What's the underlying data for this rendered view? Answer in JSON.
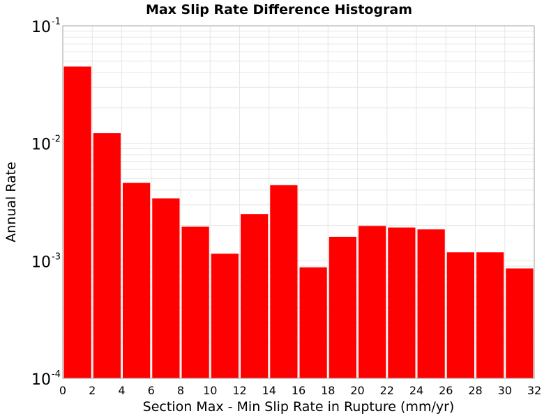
{
  "chart_data": {
    "type": "bar",
    "title": "Max Slip Rate Difference Histogram",
    "xlabel": "Section Max - Min Slip Rate in Rupture (mm/yr)",
    "ylabel": "Annual Rate",
    "yscale": "log",
    "xlim": [
      0,
      32
    ],
    "ylim": [
      0.0001,
      0.1
    ],
    "bin_width": 2,
    "x_ticks": [
      "0",
      "2",
      "4",
      "6",
      "8",
      "10",
      "12",
      "14",
      "16",
      "18",
      "20",
      "22",
      "24",
      "26",
      "28",
      "30",
      "32"
    ],
    "y_ticks": [
      {
        "base": "10",
        "exp": "-1",
        "value": 0.1
      },
      {
        "base": "10",
        "exp": "-2",
        "value": 0.01
      },
      {
        "base": "10",
        "exp": "-3",
        "value": 0.001
      },
      {
        "base": "10",
        "exp": "-4",
        "value": 0.0001
      }
    ],
    "bin_starts": [
      0,
      2,
      4,
      6,
      8,
      10,
      12,
      14,
      16,
      18,
      20,
      22,
      24,
      26,
      28,
      30
    ],
    "values": [
      0.045,
      0.0122,
      0.0046,
      0.0034,
      0.00195,
      0.00115,
      0.0025,
      0.0044,
      0.00088,
      0.0016,
      0.00198,
      0.00192,
      0.00185,
      0.00118,
      0.00118,
      0.00086
    ],
    "bar_color": "#ff0000",
    "grid": true,
    "grid_color": "#e6e6e6"
  }
}
